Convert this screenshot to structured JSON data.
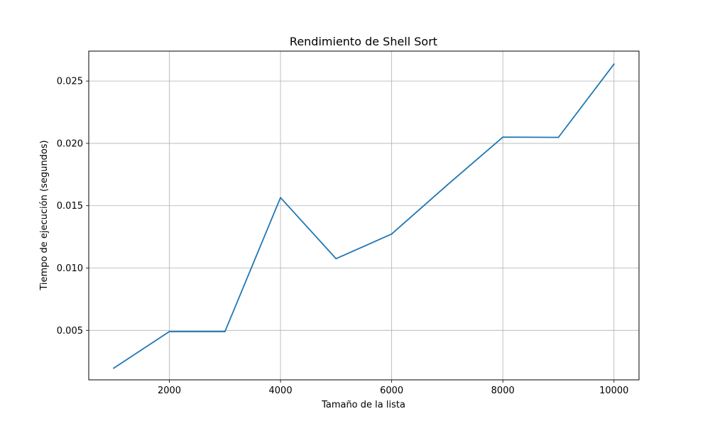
{
  "chart_data": {
    "type": "line",
    "title": "Rendimiento de Shell Sort",
    "xlabel": "Tamaño de la lista",
    "ylabel": "Tiempo de ejecución (segundos)",
    "xlim": [
      550,
      10450
    ],
    "ylim": [
      0.00103,
      0.0274
    ],
    "x_ticks": [
      2000,
      4000,
      6000,
      8000,
      10000
    ],
    "x_tick_labels": [
      "2000",
      "4000",
      "6000",
      "8000",
      "10000"
    ],
    "y_ticks": [
      0.005,
      0.01,
      0.015,
      0.02,
      0.025
    ],
    "y_tick_labels": [
      "0.005",
      "0.010",
      "0.015",
      "0.020",
      "0.025"
    ],
    "grid": true,
    "series": [
      {
        "color": "#1f77b4",
        "x": [
          1000,
          2000,
          3000,
          4000,
          5000,
          6000,
          7000,
          8000,
          9000,
          10000
        ],
        "y": [
          0.00197,
          0.0049,
          0.0049,
          0.01565,
          0.01075,
          0.01273,
          0.01666,
          0.0205,
          0.02048,
          0.02636
        ]
      }
    ]
  }
}
